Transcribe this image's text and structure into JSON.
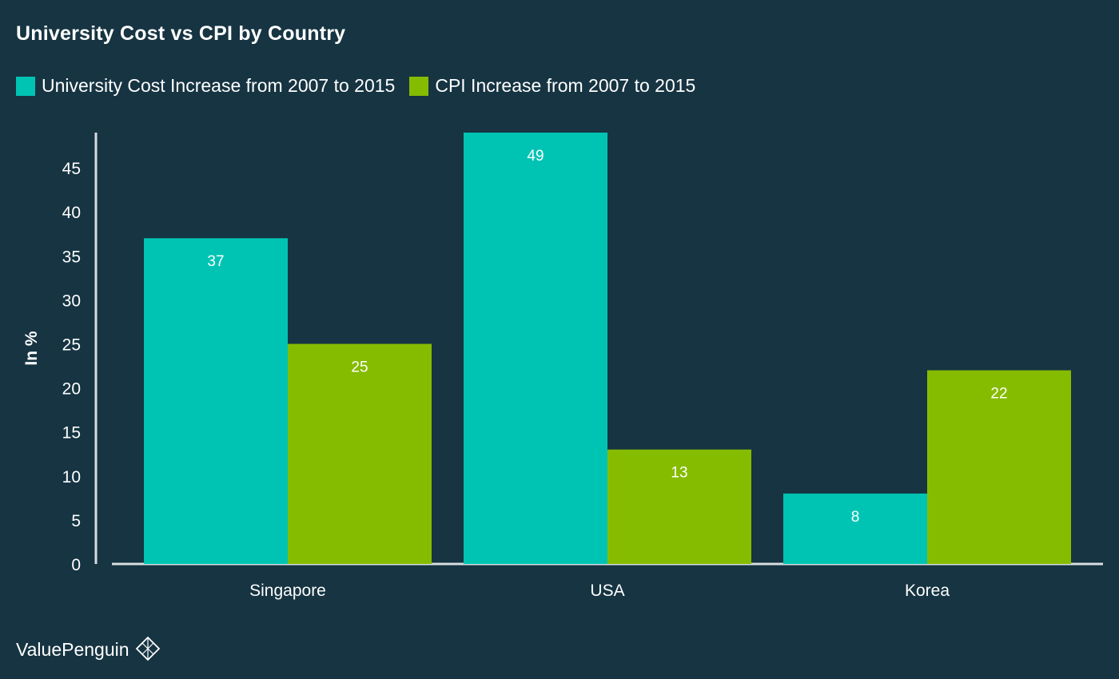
{
  "chart_data": {
    "type": "bar",
    "title": "University Cost vs CPI by Country",
    "ylabel": "In %",
    "xlabel": "",
    "categories": [
      "Singapore",
      "USA",
      "Korea"
    ],
    "series": [
      {
        "name": "University Cost Increase from 2007 to 2015",
        "values": [
          37,
          49,
          8
        ],
        "color": "#00c4b3"
      },
      {
        "name": "CPI Increase from 2007 to 2015",
        "values": [
          25,
          13,
          22
        ],
        "color": "#86bc00"
      }
    ],
    "ylim": [
      0,
      49
    ],
    "yticks": [
      0,
      5,
      10,
      15,
      20,
      25,
      30,
      35,
      40,
      45
    ],
    "grid": false,
    "legend_position": "top-left",
    "data_labels": true,
    "background": "#163442",
    "axis_color": "#d8dde0"
  },
  "branding": {
    "name": "ValuePenguin",
    "logo_icon": "penguin-diamond-icon"
  }
}
